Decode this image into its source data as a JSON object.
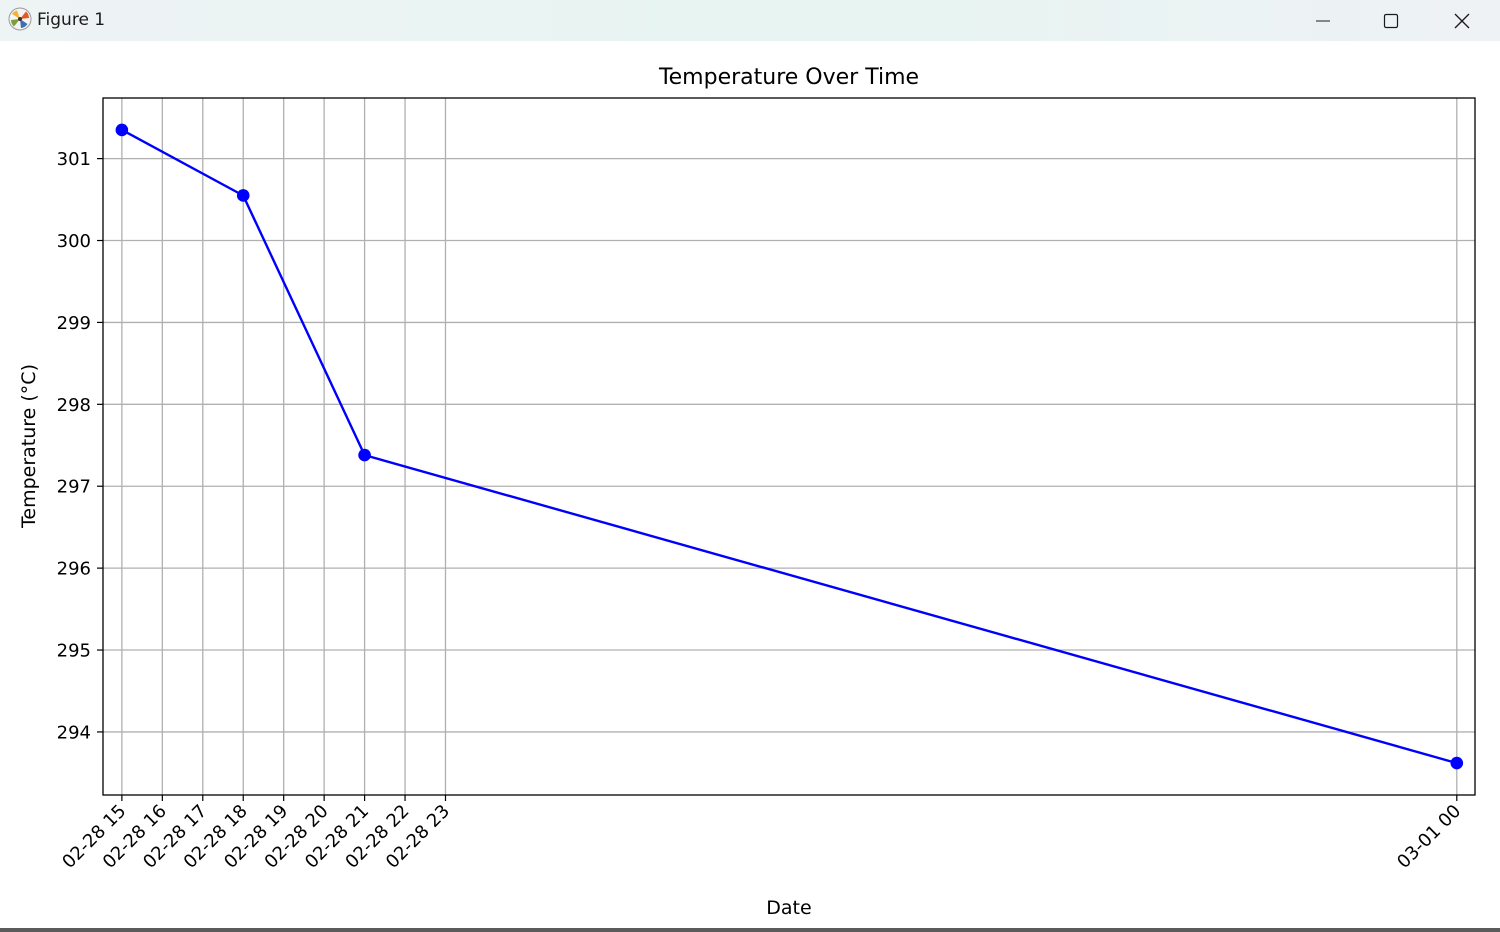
{
  "window": {
    "title": "Figure 1",
    "icon": "matplotlib-logo",
    "controls": {
      "minimize": "minimize-icon",
      "maximize": "maximize-icon",
      "close": "close-icon"
    }
  },
  "colors": {
    "line": "#0000ff",
    "grid": "#b0b0b0",
    "axes": "#000000"
  },
  "chart_data": {
    "type": "line",
    "title": "Temperature Over Time",
    "xlabel": "Date",
    "ylabel": "Temperature (°C)",
    "x_tick_labels": [
      "02-28 15",
      "02-28 16",
      "02-28 17",
      "02-28 18",
      "02-28 19",
      "02-28 20",
      "02-28 21",
      "02-28 22",
      "02-28 23",
      "03-01 00"
    ],
    "y_ticks": [
      294,
      295,
      296,
      297,
      298,
      299,
      300,
      301
    ],
    "xlim": [
      "2024-02-28 14:32",
      "2024-03-01 00:27"
    ],
    "ylim": [
      293.23,
      301.74
    ],
    "grid": true,
    "marker": "circle",
    "x": [
      "02-28 15:00",
      "02-28 18:00",
      "02-28 21:00",
      "03-01 00:00"
    ],
    "series": [
      {
        "values": [
          301.35,
          300.55,
          297.38,
          293.62
        ]
      }
    ]
  }
}
